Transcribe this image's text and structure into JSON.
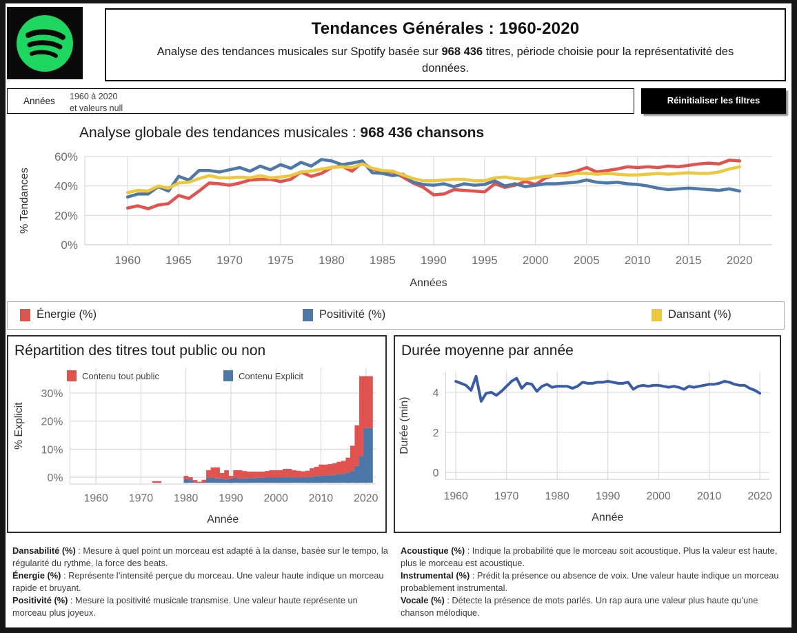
{
  "header": {
    "title": "Tendances Générales : 1960-2020",
    "subtitle_prefix": "Analyse des tendances musicales sur Spotify basée sur ",
    "subtitle_bold": "968 436",
    "subtitle_suffix": " titres, période choisie pour la représentativité des données."
  },
  "filter": {
    "label": "Années",
    "value_line1": "1960 à 2020",
    "value_line2": "et valeurs null",
    "reset_label": "Réinitialiser les filtres"
  },
  "legend": {
    "items": [
      {
        "label": "Énergie (%)",
        "color": "#e0534f"
      },
      {
        "label": "Positivité (%)",
        "color": "#4e79a7"
      },
      {
        "label": "Dansant (%)",
        "color": "#eec83c"
      }
    ]
  },
  "colors": {
    "spotify_green": "#1ed760",
    "button_bg": "#000000",
    "grid": "#d9d9d9",
    "tick": "#6f6f6f",
    "axis_title": "#333333"
  },
  "footer": {
    "left": [
      {
        "term": "Dansabilité (%)",
        "text": " : Mesure à quel point un morceau est adapté à la danse, basée sur le tempo, la régularité du rythme, la force des beats."
      },
      {
        "term": "Énergie (%)",
        "text": " : Représente l’intensité perçue du morceau. Une valeur haute indique un morceau rapide et bruyant."
      },
      {
        "term": "Positivité (%)",
        "text": " : Mesure la positivité musicale transmise. Une valeur haute représente un morceau plus joyeux."
      }
    ],
    "right": [
      {
        "term": "Acoustique (%)",
        "text": " : Indique la probabilité que le morceau soit acoustique. Plus la valeur est haute, plus le morceau est acoustique."
      },
      {
        "term": "Instrumental (%)",
        "text": " : Prédit la présence ou absence de voix. Une valeur haute indique un morceau probablement instrumental."
      },
      {
        "term": "Vocale (%)",
        "text": " : Détecte la présence de mots parlés. Un rap aura une valeur plus haute qu’une chanson mélodique."
      }
    ]
  },
  "chart_data": [
    {
      "id": "trends",
      "type": "line",
      "title_prefix": "Analyse globale des tendances musicales :  ",
      "title_bold": "968 436 chansons",
      "xlabel": "Années",
      "ylabel": "% Tendances",
      "x_start": 1960,
      "xticks": [
        1960,
        1965,
        1970,
        1975,
        1980,
        1985,
        1990,
        1995,
        2000,
        2005,
        2010,
        2015,
        2020
      ],
      "yticks": [
        0,
        20,
        40,
        60
      ],
      "ytick_suffix": "%",
      "ylim": [
        0,
        60
      ],
      "grid": true,
      "legend_position": "bottom-box",
      "series": [
        {
          "name": "Énergie (%)",
          "color": "#e0534f",
          "values": [
            25,
            26.5,
            24.5,
            27,
            28,
            33.5,
            31.5,
            36.5,
            42,
            41.5,
            40.5,
            42,
            44,
            44.5,
            44.5,
            43,
            44.5,
            49.5,
            46.5,
            48.5,
            52.5,
            53.5,
            50,
            56,
            51.5,
            50,
            49.5,
            46,
            42,
            39,
            34,
            34.5,
            37.5,
            37,
            36.5,
            36,
            41.5,
            39,
            40.5,
            43,
            41,
            45.5,
            47.5,
            48.5,
            50,
            52.5,
            49.5,
            50.5,
            51.5,
            53,
            52.5,
            53,
            52.5,
            53.5,
            53,
            54,
            55,
            55.5,
            55,
            57.5,
            57
          ]
        },
        {
          "name": "Positivité (%)",
          "color": "#4e79a7",
          "values": [
            32.5,
            34.5,
            34.5,
            39.5,
            36.5,
            46.5,
            44,
            50.5,
            50.5,
            49.5,
            51,
            52.5,
            50,
            53.5,
            51,
            54.5,
            52,
            56,
            53.5,
            58,
            57,
            54.5,
            55.5,
            57,
            49,
            48.5,
            47,
            48,
            42.5,
            41,
            40.5,
            41.5,
            39.5,
            41.5,
            40.5,
            41,
            43.5,
            40,
            41.5,
            39.5,
            40.5,
            41.5,
            41.5,
            42,
            42.5,
            44,
            42.5,
            42,
            42.5,
            41.5,
            41,
            40,
            38.5,
            37.5,
            38,
            38.5,
            38,
            37.5,
            37,
            38,
            36.5
          ]
        },
        {
          "name": "Dansant (%)",
          "color": "#eec83c",
          "values": [
            35.5,
            37,
            36.5,
            40,
            38.5,
            42,
            42.5,
            45,
            47,
            45.5,
            45.5,
            46,
            45.5,
            47,
            45.5,
            46,
            47,
            49.5,
            50,
            51.5,
            52.5,
            53,
            52.5,
            55,
            52,
            50.5,
            50,
            47.5,
            45,
            43.5,
            43.5,
            44,
            44.5,
            44.5,
            43.5,
            43.5,
            45.5,
            46,
            45,
            44.5,
            45.5,
            46.5,
            47,
            47,
            48.5,
            48.5,
            48,
            48.5,
            48,
            47.5,
            47.5,
            48,
            48.5,
            48,
            48.5,
            49,
            48.5,
            48.5,
            49.5,
            51.5,
            53
          ]
        }
      ]
    },
    {
      "id": "explicit",
      "type": "stacked-bar",
      "title": "Répartition des titres tout public ou non",
      "xlabel": "Année",
      "ylabel": "% Explicit",
      "x_start": 1973,
      "xticks": [
        1960,
        1970,
        1980,
        1990,
        2000,
        2010,
        2020
      ],
      "yticks": [
        0,
        10,
        20,
        30
      ],
      "ytick_suffix": "%",
      "ylim": [
        -2,
        36
      ],
      "baseline": -2,
      "legend": [
        {
          "label": "Contenu tout public",
          "color": "#e0534f"
        },
        {
          "label": "Contenu Explicit",
          "color": "#4e79a7"
        }
      ],
      "series": [
        {
          "name": "Contenu Explicit",
          "color": "#4a76a8",
          "values": [
            0,
            0,
            0,
            0,
            0,
            0,
            0,
            1.3,
            1.0,
            0.2,
            0,
            0.3,
            1.8,
            1.8,
            1.6,
            1.5,
            1.2,
            1.4,
            1.8,
            1.4,
            1.6,
            1.7,
            1.7,
            1.8,
            1.8,
            1.9,
            1.9,
            1.9,
            2.0,
            2.0,
            2.0,
            1.9,
            1.9,
            1.9,
            2.0,
            2.2,
            2.4,
            2.5,
            2.6,
            2.7,
            2.8,
            3.0,
            3.2,
            3.6,
            4.2,
            6.0,
            9.5,
            19.5,
            19.5
          ]
        },
        {
          "name": "Contenu tout public",
          "color": "#e0534f",
          "values": [
            0.6,
            0.6,
            0,
            0,
            0,
            0,
            0,
            1.2,
            1.0,
            0.8,
            0.4,
            0.8,
            2.7,
            3.7,
            3.9,
            2.0,
            3.3,
            1.1,
            2.7,
            3.1,
            2.6,
            2.3,
            2.3,
            2.2,
            2.2,
            2.3,
            2.6,
            2.6,
            2.5,
            3.0,
            3.0,
            2.6,
            2.4,
            2.2,
            2.3,
            3.0,
            3.3,
            4.0,
            3.9,
            4.0,
            4.2,
            4.5,
            4.6,
            5.4,
            9.0,
            14.5,
            28.5,
            18.5,
            18.5
          ]
        }
      ]
    },
    {
      "id": "duration",
      "type": "line",
      "title": "Durée moyenne par année",
      "xlabel": "Année",
      "ylabel": "Durée (min)",
      "x_start": 1960,
      "xticks": [
        1960,
        1970,
        1980,
        1990,
        2000,
        2010,
        2020
      ],
      "yticks": [
        0,
        2,
        4
      ],
      "ytick_suffix": "",
      "ylim": [
        0,
        5
      ],
      "series": [
        {
          "name": "Durée moyenne (min)",
          "color": "#3a5ca8",
          "values": [
            4.55,
            4.45,
            4.35,
            4.1,
            4.8,
            3.55,
            3.95,
            4.0,
            3.85,
            4.05,
            4.3,
            4.55,
            4.7,
            4.2,
            4.45,
            4.4,
            4.05,
            4.3,
            4.4,
            4.25,
            4.3,
            4.3,
            4.3,
            4.2,
            4.3,
            4.5,
            4.45,
            4.45,
            4.5,
            4.5,
            4.55,
            4.5,
            4.45,
            4.45,
            4.5,
            4.15,
            4.3,
            4.35,
            4.3,
            4.35,
            4.35,
            4.3,
            4.25,
            4.3,
            4.25,
            4.15,
            4.3,
            4.25,
            4.3,
            4.35,
            4.4,
            4.4,
            4.45,
            4.55,
            4.5,
            4.4,
            4.35,
            4.35,
            4.2,
            4.1,
            3.95
          ]
        }
      ]
    }
  ]
}
